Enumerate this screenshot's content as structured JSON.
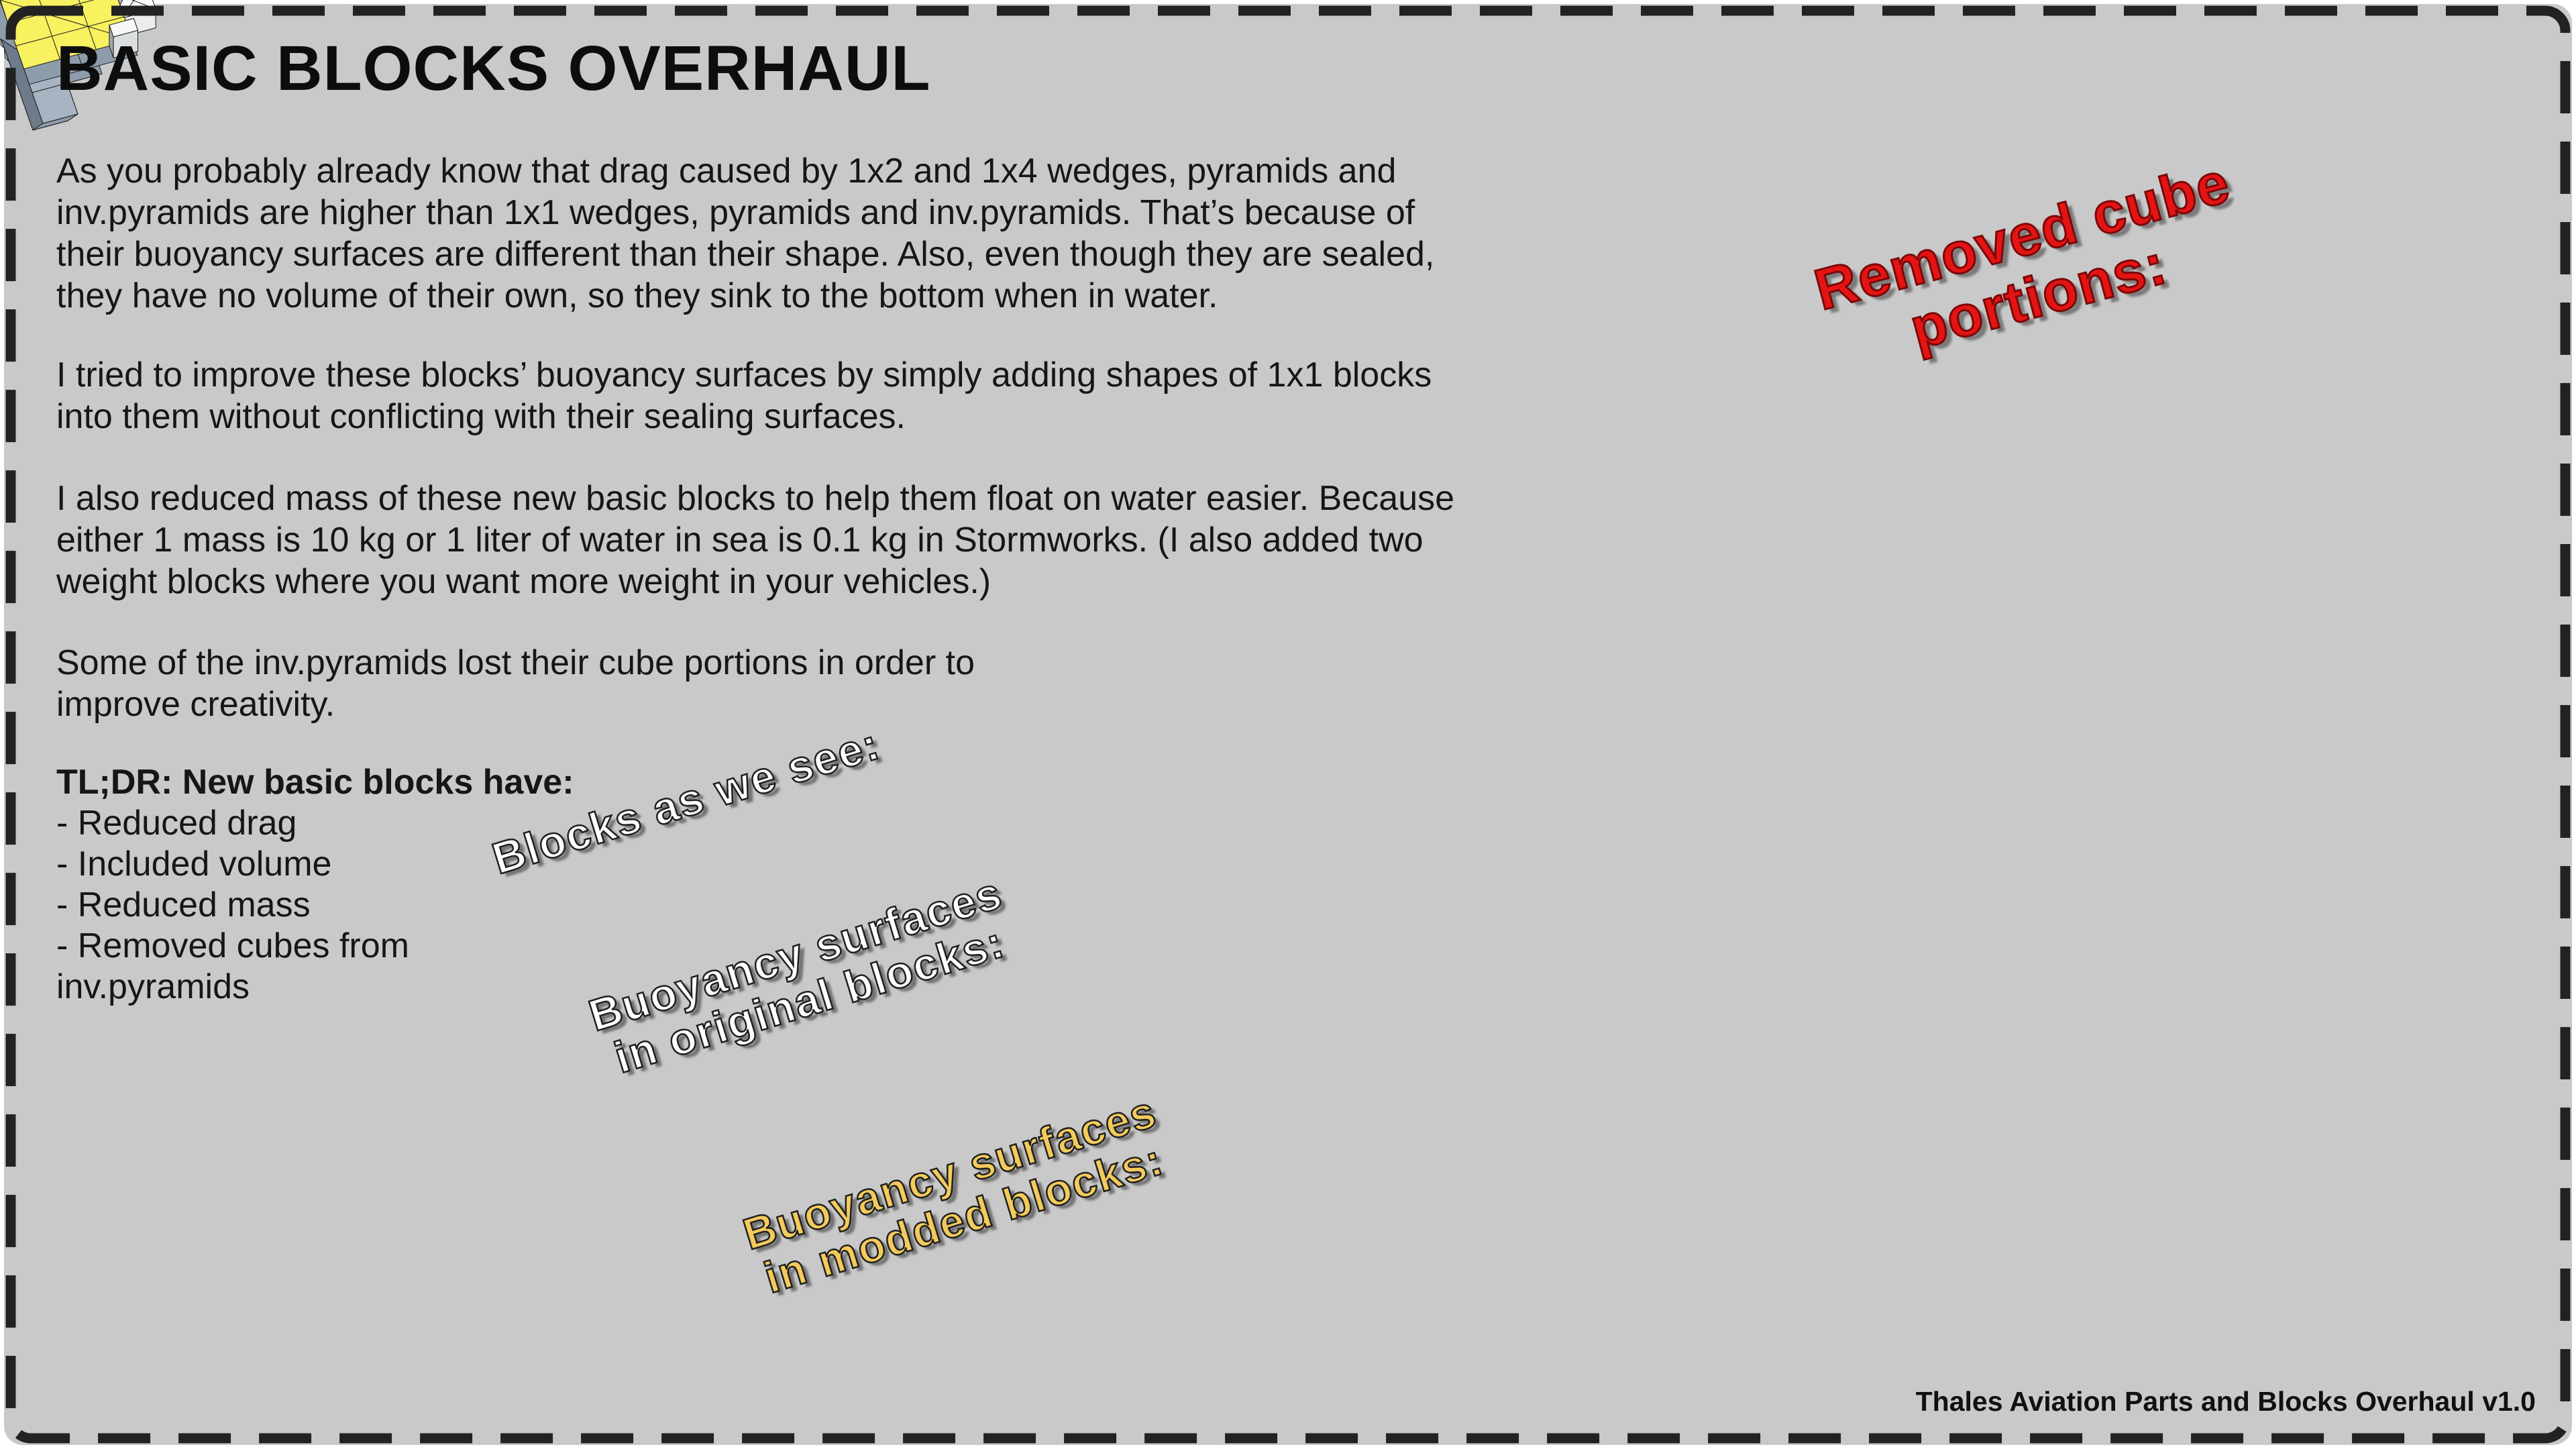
{
  "page": {
    "title": "BASIC BLOCKS OVERHAUL",
    "paragraphs": [
      "As you probably already know that drag caused by 1x2 and 1x4 wedges, pyramids and\ninv.pyramids are higher than 1x1 wedges, pyramids and inv.pyramids. That’s because of\ntheir buoyancy surfaces are different than their shape. Also, even though they are sealed,\nthey have no volume of their own, so they sink to the bottom when in water.",
      "I tried to improve these blocks’ buoyancy surfaces by simply adding shapes of 1x1 blocks\ninto them without conflicting with their sealing surfaces.",
      "I also reduced mass of these new basic blocks to help them float on water easier. Because\neither 1 mass is 10 kg or 1 liter of water in sea is 0.1 kg in Stormworks. (I also added two\nweight blocks where you want more weight in your vehicles.)",
      "Some of the inv.pyramids lost their cube portions in order to\nimprove creativity."
    ],
    "tldr": {
      "heading": "TL;DR: New basic blocks have:",
      "items": [
        "- Reduced drag",
        "- Included volume",
        "- Reduced mass",
        "- Removed cubes from\ninv.pyramids"
      ]
    },
    "footer": "Thales Aviation Parts and Blocks Overhaul v1.0"
  },
  "labels": {
    "as_we_see": "Blocks as we see:",
    "original": "Buoyancy surfaces\nin original blocks:",
    "modded": "Buoyancy surfaces\nin modded blocks:",
    "removed": "Removed cube\nportions:"
  },
  "diagram_rows": [
    {
      "name": "blocks-as-we-see",
      "style": "white blocks"
    },
    {
      "name": "removed-cube-portions",
      "style": "white stepped blocks"
    },
    {
      "name": "buoyancy-original",
      "style": "gray-blue blocks"
    },
    {
      "name": "buoyancy-modded",
      "style": "gray-blue blocks with yellow buoyancy surfaces"
    }
  ],
  "palette": {
    "background": "#c9c9c9",
    "border": "#222222",
    "text": "#161616",
    "label_white": "#ffffff",
    "label_yellow": "#f4cb5b",
    "label_red": "#e41414",
    "block_white": "#fbfbfb",
    "block_gray_top": "#a7b4c1",
    "block_gray_front": "#8d9cab",
    "block_gray_dark": "#6d7b8a",
    "buoyancy_yellow": "#f8f160",
    "buoyancy_orange": "#efba45"
  }
}
